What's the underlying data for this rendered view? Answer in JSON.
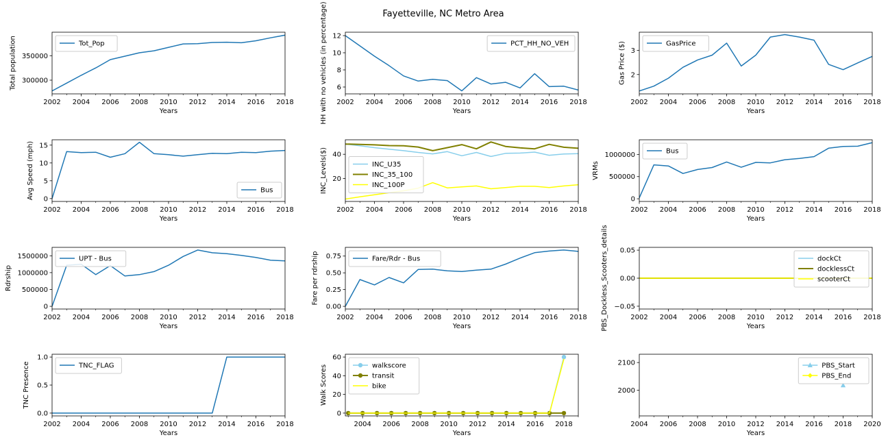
{
  "title": "Fayetteville, NC Metro Area",
  "colors": {
    "blue": "#1f77b4",
    "light": "#87ceeb",
    "olive": "#808000",
    "yellow": "#ffff00",
    "frame": "#000000"
  },
  "chart_data": [
    {
      "id": "tot_pop",
      "type": "line",
      "xlabel": "Years",
      "ylabel": "Total population",
      "xlim": [
        2002,
        2018
      ],
      "ylim": [
        272000,
        398000
      ],
      "xticks": [
        2002,
        2004,
        2006,
        2008,
        2010,
        2012,
        2014,
        2016,
        2018
      ],
      "yticks": [
        300000,
        350000
      ],
      "ytick_labels": [
        "300000",
        "350000"
      ],
      "legend_loc": "upper-left",
      "series": [
        {
          "name": "Tot_Pop",
          "color": "blue",
          "x": [
            2002,
            2003,
            2004,
            2005,
            2006,
            2007,
            2008,
            2009,
            2010,
            2011,
            2012,
            2013,
            2014,
            2015,
            2016,
            2017,
            2018
          ],
          "y": [
            278000,
            294000,
            310000,
            325000,
            342000,
            349000,
            356000,
            360000,
            367000,
            374000,
            374500,
            377000,
            377500,
            376500,
            380500,
            386500,
            392000
          ]
        }
      ]
    },
    {
      "id": "pct_hh_no_veh",
      "type": "line",
      "xlabel": "Years",
      "ylabel": "HH with no vehicles (in percentage)",
      "xlim": [
        2002,
        2018
      ],
      "ylim": [
        5.2,
        12.4
      ],
      "xticks": [
        2002,
        2004,
        2006,
        2008,
        2010,
        2012,
        2014,
        2016,
        2018
      ],
      "yticks": [
        6,
        8,
        10,
        12
      ],
      "ytick_labels": [
        "6",
        "8",
        "10",
        "12"
      ],
      "legend_loc": "upper-right",
      "series": [
        {
          "name": "PCT_HH_NO_VEH",
          "color": "blue",
          "x": [
            2002,
            2003,
            2004,
            2005,
            2006,
            2007,
            2008,
            2009,
            2010,
            2011,
            2012,
            2013,
            2014,
            2015,
            2016,
            2017,
            2018
          ],
          "y": [
            12.0,
            10.8,
            9.6,
            8.5,
            7.3,
            6.7,
            6.9,
            6.75,
            5.55,
            7.1,
            6.35,
            6.55,
            5.9,
            7.55,
            6.05,
            6.1,
            5.65
          ]
        }
      ]
    },
    {
      "id": "gas_price",
      "type": "line",
      "xlabel": "Years",
      "ylabel": "Gas Price ($)",
      "xlim": [
        2002,
        2018
      ],
      "ylim": [
        1.2,
        3.75
      ],
      "xticks": [
        2002,
        2004,
        2006,
        2008,
        2010,
        2012,
        2014,
        2016,
        2018
      ],
      "yticks": [
        2,
        3
      ],
      "ytick_labels": [
        "2",
        "3"
      ],
      "legend_loc": "upper-left",
      "series": [
        {
          "name": "GasPrice",
          "color": "blue",
          "x": [
            2002,
            2003,
            2004,
            2005,
            2006,
            2007,
            2008,
            2009,
            2010,
            2011,
            2012,
            2013,
            2014,
            2015,
            2016,
            2017,
            2018
          ],
          "y": [
            1.32,
            1.52,
            1.85,
            2.3,
            2.6,
            2.8,
            3.3,
            2.35,
            2.8,
            3.55,
            3.65,
            3.55,
            3.42,
            2.42,
            2.2,
            2.48,
            2.75
          ]
        }
      ]
    },
    {
      "id": "avg_speed",
      "type": "line",
      "xlabel": "Years",
      "ylabel": "Avg Speed (mph)",
      "xlim": [
        2002,
        2018
      ],
      "ylim": [
        -0.8,
        16.5
      ],
      "xticks": [
        2002,
        2004,
        2006,
        2008,
        2010,
        2012,
        2014,
        2016,
        2018
      ],
      "yticks": [
        0,
        5,
        10,
        15
      ],
      "ytick_labels": [
        "0",
        "5",
        "10",
        "15"
      ],
      "legend_loc": "lower-right",
      "series": [
        {
          "name": "Bus",
          "color": "blue",
          "x": [
            2002,
            2003,
            2004,
            2005,
            2006,
            2007,
            2008,
            2009,
            2010,
            2011,
            2012,
            2013,
            2014,
            2015,
            2016,
            2017,
            2018
          ],
          "y": [
            0,
            13.2,
            12.9,
            13.0,
            11.6,
            12.6,
            15.8,
            12.6,
            12.3,
            11.9,
            12.3,
            12.7,
            12.6,
            13.0,
            12.9,
            13.3,
            13.5
          ]
        }
      ]
    },
    {
      "id": "inc_levels",
      "type": "line",
      "xlabel": "Years",
      "ylabel": "INC_Levels($)",
      "xlim": [
        2002,
        2018
      ],
      "ylim": [
        1,
        52
      ],
      "xticks": [
        2002,
        2004,
        2006,
        2008,
        2010,
        2012,
        2014,
        2016,
        2018
      ],
      "yticks": [
        20,
        40
      ],
      "ytick_labels": [
        "20",
        "40"
      ],
      "legend_loc": "center-left",
      "series": [
        {
          "name": "INC_U35",
          "color": "light",
          "x": [
            2002,
            2003,
            2004,
            2005,
            2006,
            2007,
            2008,
            2009,
            2010,
            2011,
            2012,
            2013,
            2014,
            2015,
            2016,
            2017,
            2018
          ],
          "y": [
            48.5,
            47.0,
            45.5,
            44.2,
            43.0,
            41.5,
            40.3,
            42.2,
            38.8,
            41.5,
            38.2,
            40.8,
            41.0,
            41.8,
            39.2,
            40.2,
            40.5
          ]
        },
        {
          "name": "INC_35_100",
          "color": "olive",
          "x": [
            2002,
            2003,
            2004,
            2005,
            2006,
            2007,
            2008,
            2009,
            2010,
            2011,
            2012,
            2013,
            2014,
            2015,
            2016,
            2017,
            2018
          ],
          "y": [
            48.5,
            48.2,
            47.8,
            47.2,
            47.0,
            46.0,
            43.0,
            45.5,
            48.0,
            44.5,
            50.2,
            46.5,
            45.3,
            44.5,
            48.2,
            45.8,
            45.0
          ]
        },
        {
          "name": "INC_100P",
          "color": "yellow",
          "x": [
            2002,
            2003,
            2004,
            2005,
            2006,
            2007,
            2008,
            2009,
            2010,
            2011,
            2012,
            2013,
            2014,
            2015,
            2016,
            2017,
            2018
          ],
          "y": [
            3.0,
            4.8,
            6.5,
            8.2,
            9.8,
            12.0,
            16.5,
            12.2,
            13.0,
            13.8,
            11.5,
            12.5,
            13.5,
            13.5,
            12.5,
            13.8,
            14.8
          ]
        }
      ]
    },
    {
      "id": "vrms",
      "type": "line",
      "xlabel": "Years",
      "ylabel": "VRMs",
      "xlim": [
        2002,
        2018
      ],
      "ylim": [
        -60000,
        1330000
      ],
      "xticks": [
        2002,
        2004,
        2006,
        2008,
        2010,
        2012,
        2014,
        2016,
        2018
      ],
      "yticks": [
        0,
        500000,
        1000000
      ],
      "ytick_labels": [
        "0",
        "500000",
        "1000000"
      ],
      "legend_loc": "upper-left",
      "series": [
        {
          "name": "Bus",
          "color": "blue",
          "x": [
            2002,
            2003,
            2004,
            2005,
            2006,
            2007,
            2008,
            2009,
            2010,
            2011,
            2012,
            2013,
            2014,
            2015,
            2016,
            2017,
            2018
          ],
          "y": [
            20000,
            765000,
            740000,
            570000,
            660000,
            705000,
            830000,
            710000,
            820000,
            810000,
            880000,
            910000,
            950000,
            1140000,
            1180000,
            1185000,
            1265000
          ]
        }
      ]
    },
    {
      "id": "upt",
      "type": "line",
      "xlabel": "Years",
      "ylabel": "Rdrship",
      "xlim": [
        2002,
        2018
      ],
      "ylim": [
        -80000,
        1750000
      ],
      "xticks": [
        2002,
        2004,
        2006,
        2008,
        2010,
        2012,
        2014,
        2016,
        2018
      ],
      "yticks": [
        0,
        500000,
        1000000,
        1500000
      ],
      "ytick_labels": [
        "0",
        "500000",
        "1000000",
        "1500000"
      ],
      "legend_loc": "upper-left",
      "series": [
        {
          "name": "UPT - Bus",
          "color": "blue",
          "x": [
            2002,
            2003,
            2004,
            2005,
            2006,
            2007,
            2008,
            2009,
            2010,
            2011,
            2012,
            2013,
            2014,
            2015,
            2016,
            2017,
            2018
          ],
          "y": [
            0,
            1220000,
            1250000,
            940000,
            1210000,
            900000,
            940000,
            1030000,
            1220000,
            1480000,
            1670000,
            1590000,
            1560000,
            1510000,
            1450000,
            1370000,
            1350000
          ]
        }
      ]
    },
    {
      "id": "fare_rdr",
      "type": "line",
      "xlabel": "Years",
      "ylabel": "Fare per rdrship",
      "xlim": [
        2002,
        2018
      ],
      "ylim": [
        -0.04,
        0.88
      ],
      "xticks": [
        2002,
        2004,
        2006,
        2008,
        2010,
        2012,
        2014,
        2016,
        2018
      ],
      "yticks": [
        0,
        0.25,
        0.5,
        0.75
      ],
      "ytick_labels": [
        "0.00",
        "0.25",
        "0.50",
        "0.75"
      ],
      "legend_loc": "upper-left",
      "series": [
        {
          "name": "Fare/Rdr - Bus",
          "color": "blue",
          "x": [
            2002,
            2003,
            2004,
            2005,
            2006,
            2007,
            2008,
            2009,
            2010,
            2011,
            2012,
            2013,
            2014,
            2015,
            2016,
            2017,
            2018
          ],
          "y": [
            0,
            0.4,
            0.32,
            0.43,
            0.35,
            0.55,
            0.555,
            0.53,
            0.52,
            0.54,
            0.555,
            0.63,
            0.72,
            0.8,
            0.825,
            0.84,
            0.82
          ]
        }
      ]
    },
    {
      "id": "pbs_dockless",
      "type": "line",
      "xlabel": "Years",
      "ylabel": "PBS_Dockless_Scooters_details",
      "xlim": [
        2002,
        2018
      ],
      "ylim": [
        -0.055,
        0.055
      ],
      "xticks": [
        2002,
        2004,
        2006,
        2008,
        2010,
        2012,
        2014,
        2016,
        2018
      ],
      "yticks": [
        -0.05,
        0,
        0.05
      ],
      "ytick_labels": [
        "−0.05",
        "0.00",
        "0.05"
      ],
      "legend_loc": "upper-right",
      "series": [
        {
          "name": "dockCt",
          "color": "light",
          "x": [
            2002,
            2018
          ],
          "y": [
            0,
            0
          ]
        },
        {
          "name": "docklessCt",
          "color": "olive",
          "x": [
            2002,
            2018
          ],
          "y": [
            0,
            0
          ]
        },
        {
          "name": "scooterCt",
          "color": "yellow",
          "x": [
            2002,
            2018
          ],
          "y": [
            0,
            0
          ]
        }
      ]
    },
    {
      "id": "tnc_flag",
      "type": "line",
      "xlabel": "Years",
      "ylabel": "TNC Presence",
      "xlim": [
        2002,
        2018
      ],
      "ylim": [
        -0.05,
        1.05
      ],
      "xticks": [
        2002,
        2004,
        2006,
        2008,
        2010,
        2012,
        2014,
        2016,
        2018
      ],
      "yticks": [
        0,
        0.5,
        1.0
      ],
      "ytick_labels": [
        "0.0",
        "0.5",
        "1.0"
      ],
      "legend_loc": "upper-left",
      "series": [
        {
          "name": "TNC_FLAG",
          "color": "blue",
          "x": [
            2002,
            2003,
            2004,
            2005,
            2006,
            2007,
            2008,
            2009,
            2010,
            2011,
            2012,
            2013,
            2014,
            2015,
            2016,
            2017,
            2018
          ],
          "y": [
            0,
            0,
            0,
            0,
            0,
            0,
            0,
            0,
            0,
            0,
            0,
            0,
            1,
            1,
            1,
            1,
            1
          ]
        }
      ]
    },
    {
      "id": "walk_scores",
      "type": "line",
      "xlabel": "Years",
      "ylabel": "Walk Scores",
      "xlim": [
        2002.8,
        2019.0
      ],
      "ylim": [
        -3,
        63
      ],
      "xticks": [
        2004,
        2006,
        2008,
        2010,
        2012,
        2014,
        2016,
        2018
      ],
      "yticks": [
        0,
        20,
        40,
        60
      ],
      "ytick_labels": [
        "0",
        "20",
        "40",
        "60"
      ],
      "legend_loc": "upper-left",
      "series": [
        {
          "name": "walkscore",
          "color": "light",
          "marker": "circle",
          "x": [
            2003,
            2004,
            2005,
            2006,
            2007,
            2008,
            2009,
            2010,
            2011,
            2012,
            2013,
            2014,
            2015,
            2016,
            2017,
            2018
          ],
          "y": [
            0,
            0,
            0,
            0,
            0,
            0,
            0,
            0,
            0,
            0,
            0,
            0,
            0,
            0,
            0,
            60
          ]
        },
        {
          "name": "transit",
          "color": "olive",
          "marker": "circle",
          "x": [
            2003,
            2004,
            2005,
            2006,
            2007,
            2008,
            2009,
            2010,
            2011,
            2012,
            2013,
            2014,
            2015,
            2016,
            2017,
            2018
          ],
          "y": [
            0,
            0,
            0,
            0,
            0,
            0,
            0,
            0,
            0,
            0,
            0,
            0,
            0,
            0,
            0,
            0
          ]
        },
        {
          "name": "bike",
          "color": "yellow",
          "marker": "none",
          "x": [
            2003,
            2004,
            2005,
            2006,
            2007,
            2008,
            2009,
            2010,
            2011,
            2012,
            2013,
            2014,
            2015,
            2016,
            2017,
            2018
          ],
          "y": [
            0,
            0,
            0,
            0,
            0,
            0,
            0,
            0,
            0,
            0,
            0,
            0,
            0,
            0,
            0,
            58
          ]
        }
      ]
    },
    {
      "id": "pbs_start_end",
      "type": "line",
      "xlabel": "Years",
      "ylabel": "",
      "xlim": [
        2004,
        2020
      ],
      "ylim": [
        1907,
        2130
      ],
      "xticks": [
        2004,
        2006,
        2008,
        2010,
        2012,
        2014,
        2016,
        2018,
        2020
      ],
      "yticks": [
        2000,
        2100
      ],
      "ytick_labels": [
        "2000",
        "2100"
      ],
      "legend_loc": "upper-right",
      "series": [
        {
          "name": "PBS_Start",
          "color": "light",
          "marker": "triangle",
          "x": [
            2018
          ],
          "y": [
            2018
          ]
        },
        {
          "name": "PBS_End",
          "color": "yellow",
          "marker": "diamond",
          "x": [],
          "y": []
        }
      ]
    }
  ]
}
